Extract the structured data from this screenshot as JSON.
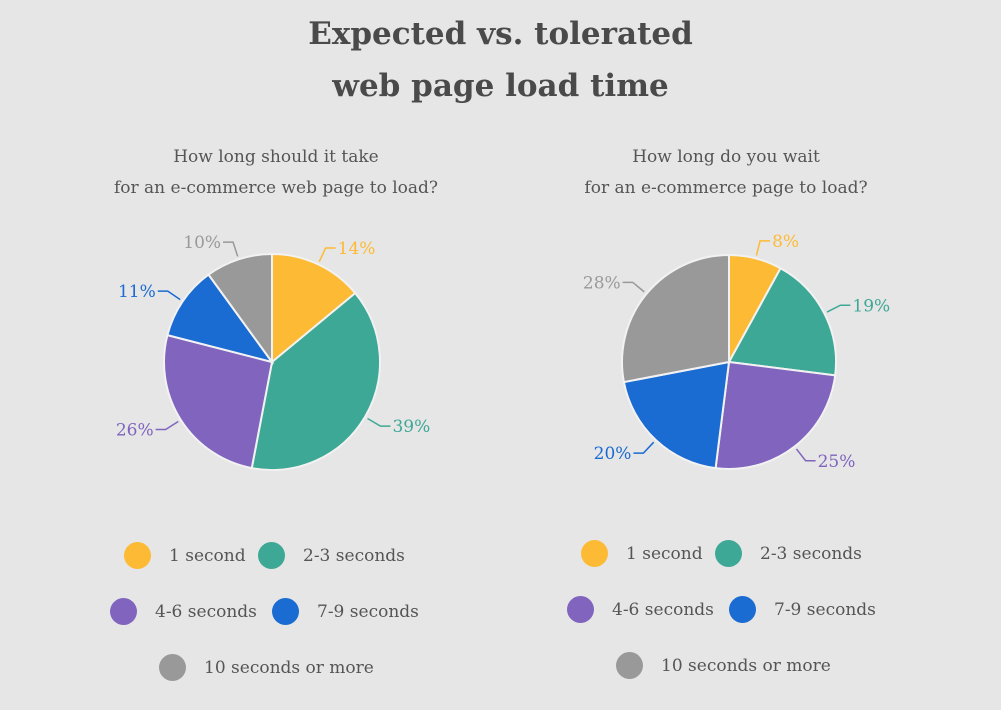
{
  "title_line1": "Expected vs. tolerated",
  "title_line2": "web page load time",
  "chart_data": [
    {
      "type": "pie",
      "subtitle_line1": "How long should it take",
      "subtitle_line2": "for an e-commerce web page to load?",
      "categories": [
        "1 second",
        "2-3 seconds",
        "4-6 seconds",
        "7-9 seconds",
        "10 seconds or more"
      ],
      "values": [
        14,
        39,
        26,
        11,
        10
      ],
      "labels": [
        "14%",
        "39%",
        "26%",
        "11%",
        "10%"
      ],
      "legend": "bottom"
    },
    {
      "type": "pie",
      "subtitle_line1": "How long do you wait",
      "subtitle_line2": "for an e-commerce page to load?",
      "categories": [
        "1 second",
        "2-3 seconds",
        "4-6 seconds",
        "7-9 seconds",
        "10 seconds or more"
      ],
      "values": [
        8,
        19,
        25,
        20,
        28
      ],
      "labels": [
        "8%",
        "19%",
        "25%",
        "20%",
        "28%"
      ],
      "legend": "bottom"
    }
  ],
  "colors": [
    "#FDBA35",
    "#3DA895",
    "#8064BE",
    "#1A6BD2",
    "#999999"
  ]
}
